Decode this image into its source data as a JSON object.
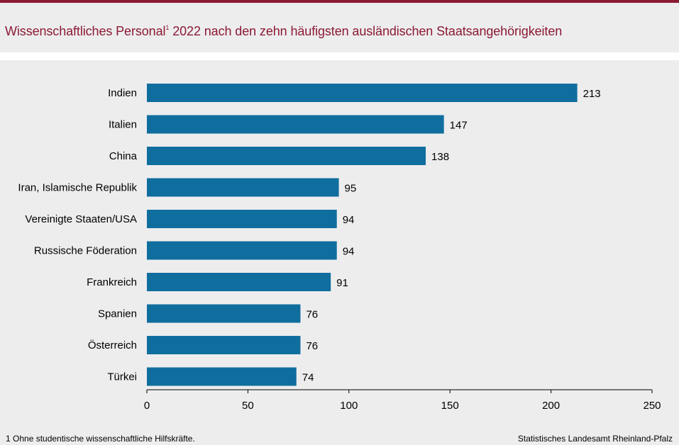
{
  "header": {
    "title_main": "Wissenschaftliches Personal",
    "title_sup": "1",
    "title_rest": " 2022 nach den zehn häufigsten ausländischen Staatsangehörigkeiten"
  },
  "colors": {
    "accent": "#8b1a34",
    "bar": "#0f6e9e"
  },
  "chart_data": {
    "type": "bar",
    "orientation": "horizontal",
    "categories": [
      "Indien",
      "Italien",
      "China",
      "Iran, Islamische Republik",
      "Vereinigte Staaten/USA",
      "Russische Föderation",
      "Frankreich",
      "Spanien",
      "Österreich",
      "Türkei"
    ],
    "values": [
      213,
      147,
      138,
      95,
      94,
      94,
      91,
      76,
      76,
      74
    ],
    "xlim": [
      0,
      250
    ],
    "xticks": [
      0,
      50,
      100,
      150,
      200,
      250
    ],
    "grid": false,
    "legend": "none"
  },
  "footer": {
    "footnote": "1 Ohne studentische wissenschaftliche Hilfskräfte.",
    "source": "Statistisches Landesamt Rheinland-Pfalz"
  }
}
